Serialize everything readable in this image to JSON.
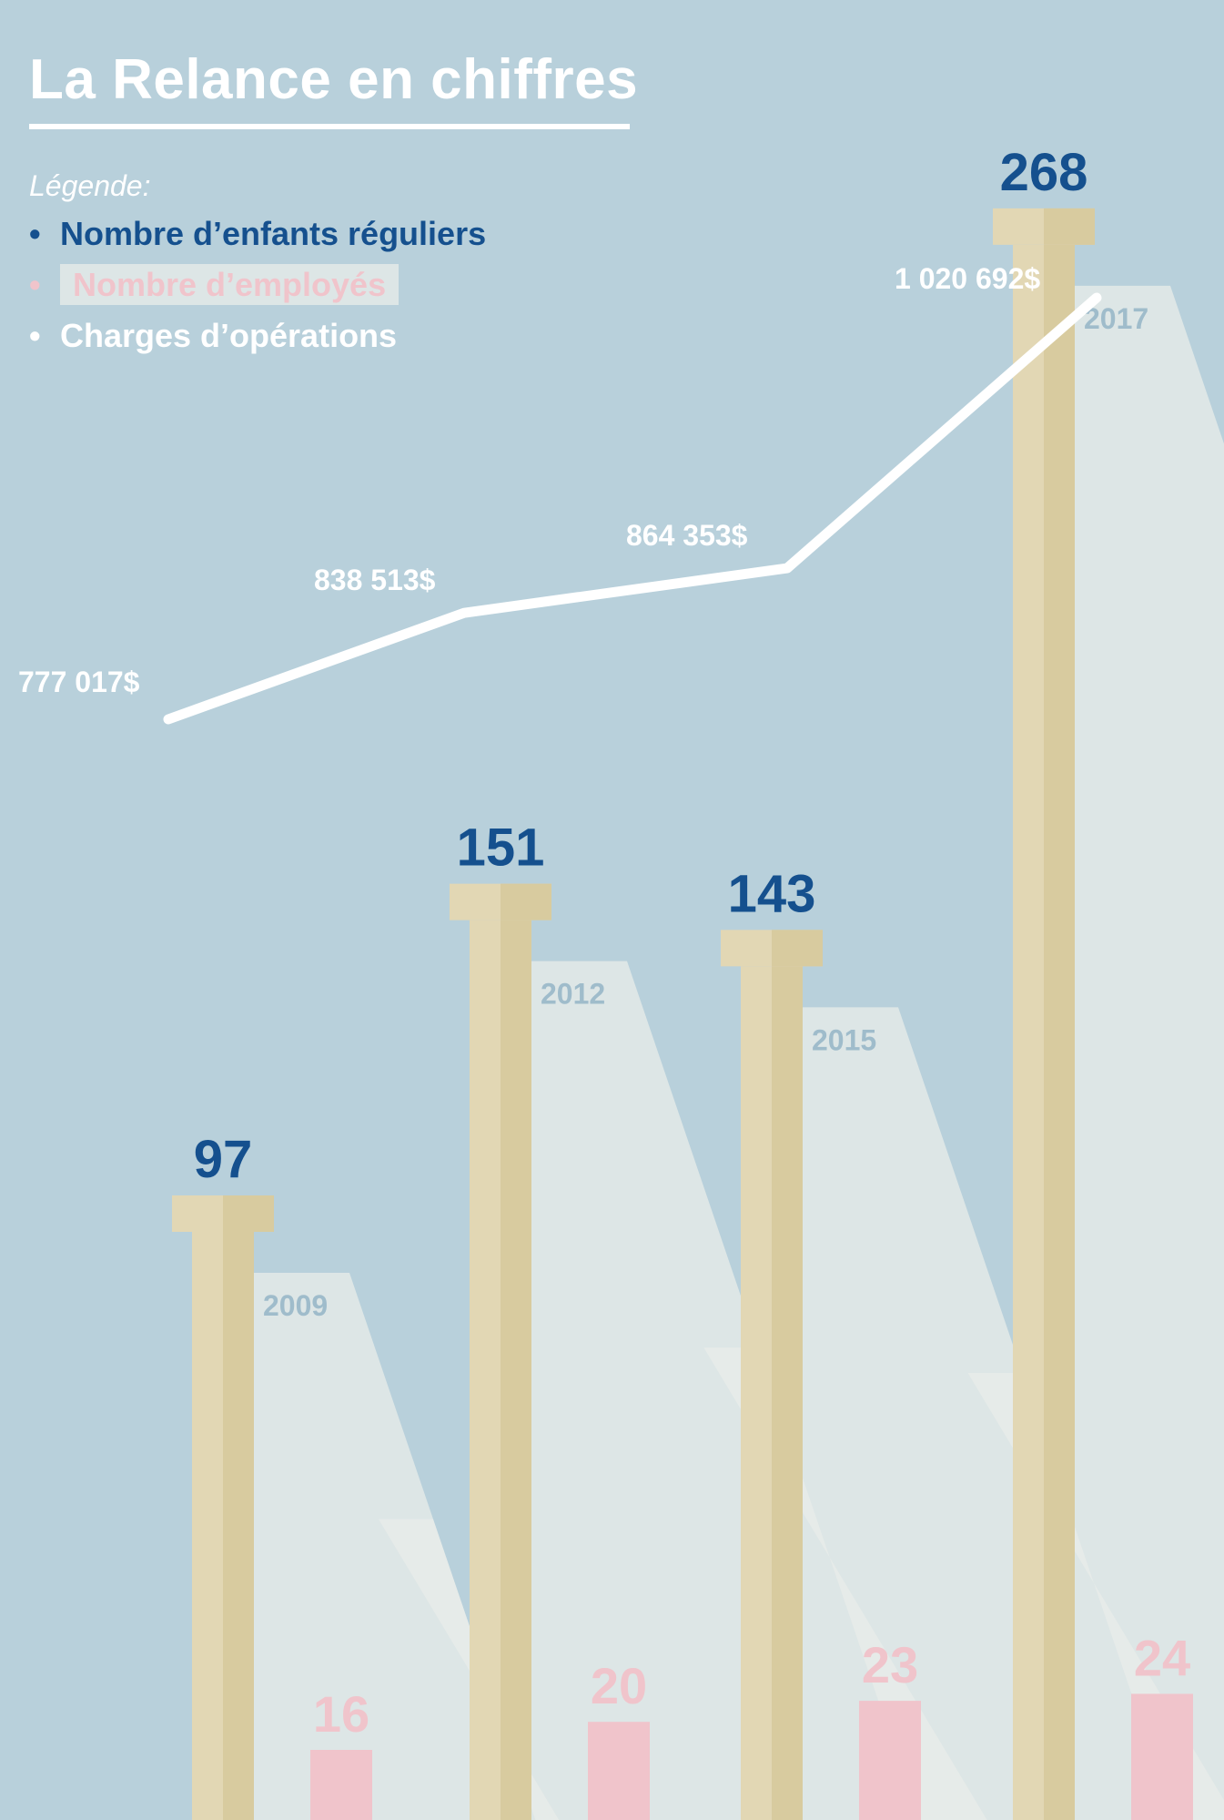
{
  "title": "La Relance en chiffres",
  "legend": {
    "heading": "Légende:",
    "items": [
      {
        "label": "Nombre d’enfants réguliers",
        "color": "#15508e"
      },
      {
        "label": "Nombre d’employés",
        "color": "#f0c4cb"
      },
      {
        "label": "Charges d’opérations",
        "color": "#ffffff"
      }
    ]
  },
  "colors": {
    "background": "#b8d0db",
    "column": "#e2d7b4",
    "column_shade": "#d8cb9f",
    "shadow": "#dde6e6",
    "shadow_light": "#e9ecea",
    "children": "#15508e",
    "employees": "#f0c4cb",
    "charges": "#ffffff",
    "year_label": "#9fbccb"
  },
  "chart_data": {
    "type": "bar",
    "categories": [
      "2009",
      "2012",
      "2015",
      "2017"
    ],
    "series": [
      {
        "name": "Nombre d’enfants réguliers",
        "values": [
          97,
          151,
          143,
          268
        ]
      },
      {
        "name": "Nombre d’employés",
        "values": [
          16,
          20,
          23,
          24
        ]
      },
      {
        "name": "Charges d’opérations",
        "values": [
          777017,
          838513,
          864353,
          1020692
        ],
        "labels": [
          "777 017$",
          "838 513$",
          "864 353$",
          "1 020 692$"
        ]
      }
    ]
  }
}
